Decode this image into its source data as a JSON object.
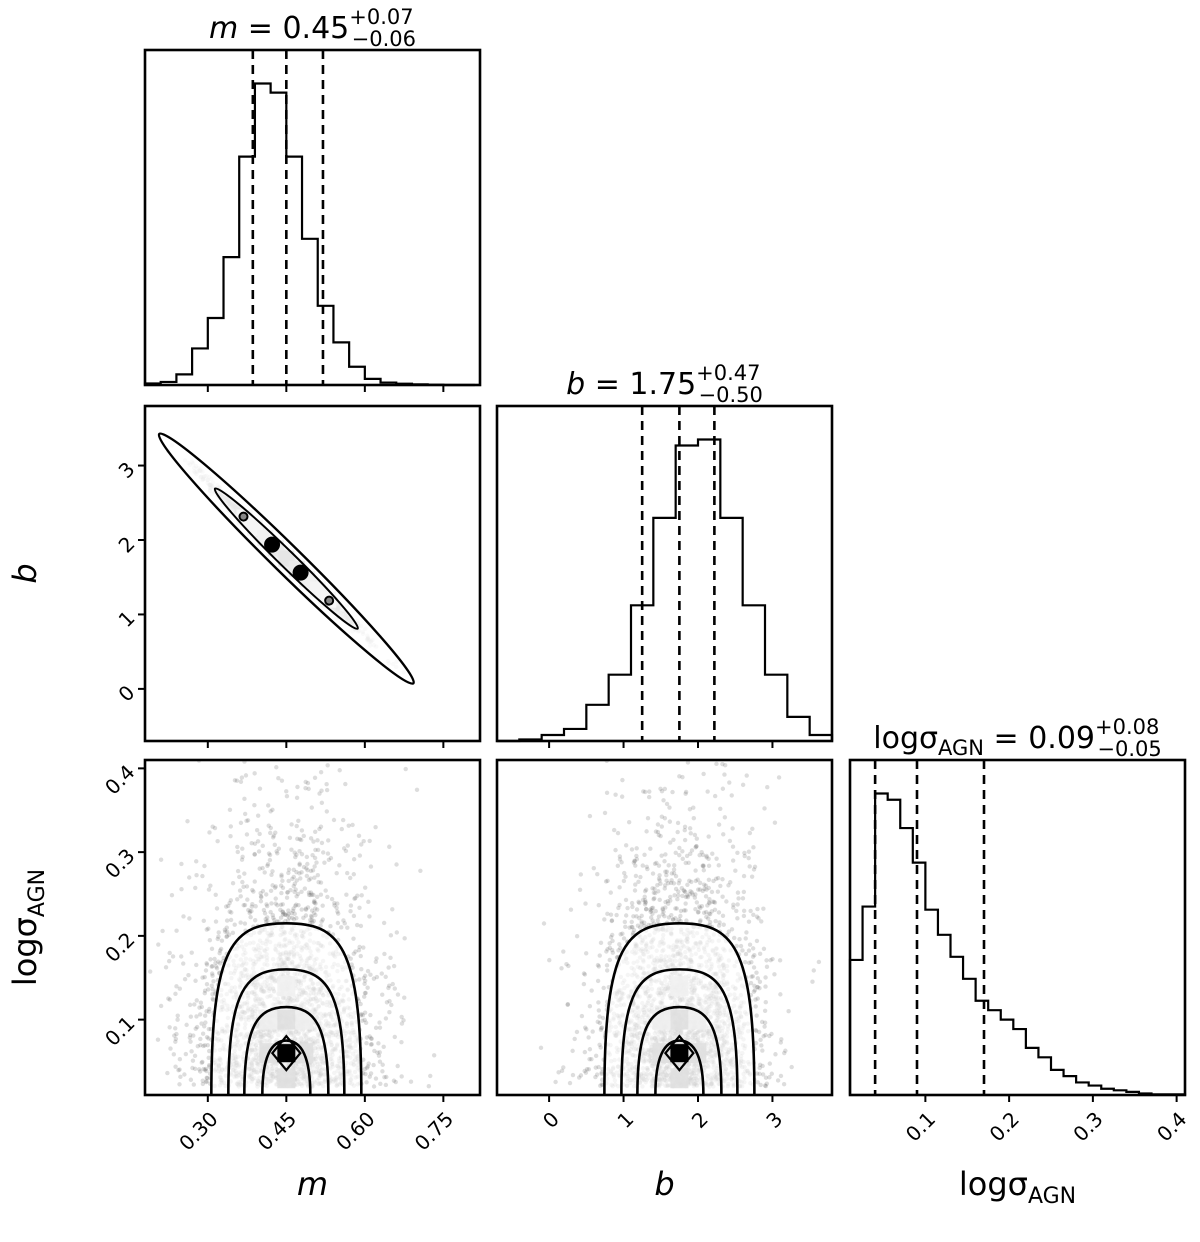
{
  "chart_data": {
    "type": "corner",
    "parameters": [
      {
        "key": "m",
        "label": "m",
        "italic": true,
        "sub": "",
        "title": {
          "prefix": "m = 0.45",
          "upper": "+0.07",
          "lower": "−0.06"
        },
        "range": [
          0.18,
          0.82
        ],
        "ticks": [
          "0.30",
          "0.45",
          "0.60",
          "0.75"
        ],
        "quantiles": [
          0.386,
          0.45,
          0.52
        ]
      },
      {
        "key": "b",
        "label": "b",
        "italic": true,
        "sub": "",
        "title": {
          "prefix": "b = 1.75",
          "upper": "+0.47",
          "lower": "−0.50"
        },
        "range": [
          -0.7,
          3.8
        ],
        "ticks": [
          "0",
          "1",
          "2",
          "3"
        ],
        "quantiles": [
          1.25,
          1.75,
          2.22
        ]
      },
      {
        "key": "logsigma",
        "label": "logσ",
        "italic": false,
        "sub": "AGN",
        "title": {
          "prefix": "logσ",
          "sub": "AGN",
          "suffix": " = 0.09",
          "upper": "+0.08",
          "lower": "−0.05"
        },
        "range": [
          0.01,
          0.41
        ],
        "ticks": [
          "0.1",
          "0.2",
          "0.3",
          "0.4"
        ],
        "quantiles": [
          0.04,
          0.09,
          0.17
        ]
      }
    ],
    "histograms": {
      "m": {
        "bins": [
          0.18,
          0.21,
          0.24,
          0.27,
          0.3,
          0.33,
          0.36,
          0.39,
          0.42,
          0.45,
          0.48,
          0.51,
          0.54,
          0.57,
          0.6,
          0.63,
          0.66,
          0.69,
          0.72,
          0.75,
          0.78,
          0.81
        ],
        "values": [
          0.005,
          0.01,
          0.035,
          0.12,
          0.22,
          0.42,
          0.75,
          0.99,
          0.96,
          0.75,
          0.48,
          0.26,
          0.14,
          0.06,
          0.02,
          0.008,
          0.004,
          0.002,
          0.001,
          0,
          0
        ]
      },
      "b": {
        "bins": [
          -0.7,
          -0.4,
          -0.1,
          0.2,
          0.5,
          0.8,
          1.1,
          1.4,
          1.7,
          2.0,
          2.3,
          2.6,
          2.9,
          3.2,
          3.5,
          3.8
        ],
        "values": [
          0,
          0.005,
          0.02,
          0.04,
          0.12,
          0.22,
          0.45,
          0.74,
          0.98,
          1.0,
          0.74,
          0.45,
          0.22,
          0.08,
          0.02
        ]
      },
      "logsigma": {
        "bins": [
          0.01,
          0.025,
          0.04,
          0.055,
          0.07,
          0.085,
          0.1,
          0.115,
          0.13,
          0.145,
          0.16,
          0.175,
          0.19,
          0.205,
          0.22,
          0.235,
          0.25,
          0.265,
          0.28,
          0.295,
          0.31,
          0.325,
          0.34,
          0.355,
          0.37,
          0.41
        ],
        "values": [
          0.43,
          0.6,
          0.96,
          0.94,
          0.85,
          0.74,
          0.59,
          0.51,
          0.44,
          0.37,
          0.3,
          0.27,
          0.24,
          0.21,
          0.15,
          0.12,
          0.08,
          0.06,
          0.04,
          0.03,
          0.02,
          0.015,
          0.01,
          0.005,
          0.002
        ]
      }
    },
    "joint": [
      {
        "x": "m",
        "y": "b",
        "correlation": -0.995,
        "mean": [
          0.45,
          1.75
        ]
      },
      {
        "x": "m",
        "y": "logsigma",
        "correlation": 0.0,
        "mean": [
          0.45,
          0.09
        ]
      },
      {
        "x": "b",
        "y": "logsigma",
        "correlation": 0.0,
        "mean": [
          1.75,
          0.09
        ]
      }
    ],
    "histtype": "step",
    "quantile_style": "dashed",
    "points_color": "#555555",
    "contour_color": "#000000"
  }
}
